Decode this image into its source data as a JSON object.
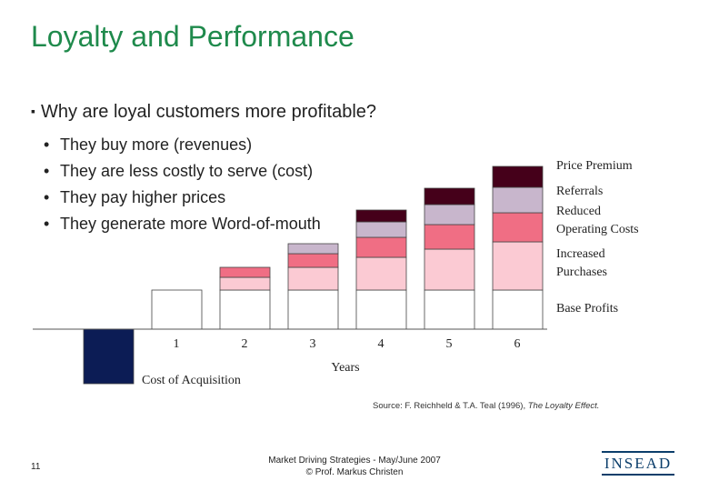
{
  "slide": {
    "title": "Loyalty and Performance",
    "question": "Why are loyal customers more profitable?",
    "bullets": [
      "They buy more (revenues)",
      "They are less costly to serve (cost)",
      "They pay higher prices",
      "They generate more Word-of-mouth"
    ],
    "source_prefix": "Source: F. Reichheld & T.A. Teal (1996), ",
    "source_book": "The Loyalty Effect.",
    "page_number": "11",
    "footer_line1": "Market Driving Strategies - May/June 2007",
    "footer_line2": "© Prof. Markus Christen",
    "logo_text": "INSEAD"
  },
  "chart_data": {
    "type": "bar",
    "stacked": true,
    "xlabel": "Years",
    "categories": [
      "0",
      "1",
      "2",
      "3",
      "4",
      "5",
      "6"
    ],
    "category_labels": [
      "",
      "1",
      "2",
      "3",
      "4",
      "5",
      "6"
    ],
    "acquisition": {
      "name": "Cost of Acquisition",
      "values": [
        -60,
        0,
        0,
        0,
        0,
        0,
        0
      ],
      "color": "#0c1c55"
    },
    "series": [
      {
        "name": "Base Profits",
        "values": [
          0,
          43,
          43,
          43,
          43,
          43,
          43
        ],
        "color": "#ffffff"
      },
      {
        "name": "Increased Purchases",
        "values": [
          0,
          0,
          14,
          25,
          36,
          45,
          53
        ],
        "color": "#fbcad3"
      },
      {
        "name": "Reduced Operating Costs",
        "values": [
          0,
          0,
          11,
          15,
          22,
          27,
          32
        ],
        "color": "#f06e84"
      },
      {
        "name": "Referrals",
        "values": [
          0,
          0,
          0,
          11,
          17,
          22,
          28
        ],
        "color": "#c8b6cc"
      },
      {
        "name": "Price Premium",
        "values": [
          0,
          0,
          0,
          0,
          13,
          18,
          23
        ],
        "color": "#45001a"
      }
    ],
    "legend_labels": [
      {
        "text": "Price Premium",
        "series": 4
      },
      {
        "text": "Referrals",
        "series": 3
      },
      {
        "text": "Reduced",
        "series": 2
      },
      {
        "text": "Operating Costs",
        "series": 2
      },
      {
        "text": "Increased",
        "series": 1
      },
      {
        "text": "Purchases",
        "series": 1
      },
      {
        "text": "Base Profits",
        "series": 0
      }
    ],
    "legend_placement": "right, aligned with bar segments",
    "grid": false
  }
}
